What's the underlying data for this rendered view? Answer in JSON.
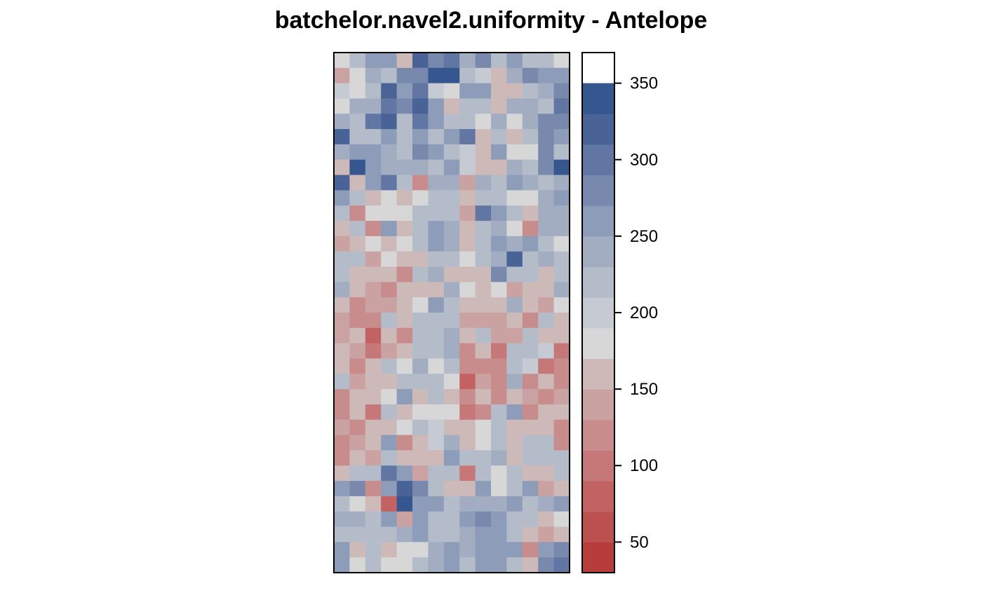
{
  "chart_data": {
    "type": "heatmap",
    "title": "batchelor.navel2.uniformity - Antelope",
    "xlabel": "",
    "ylabel": "",
    "ncols": 15,
    "nrows": 34,
    "color_scale": {
      "min": 30,
      "max": 370,
      "step": 20,
      "ticks": [
        50,
        100,
        150,
        200,
        250,
        300,
        350
      ],
      "colors": [
        "#b73d3d",
        "#bc4f4f",
        "#c26262",
        "#c67777",
        "#c88c8c",
        "#cba2a2",
        "#ceb9b9",
        "#d7d7d7",
        "#c6cbd3",
        "#b4bcca",
        "#a2adc2",
        "#8d9cb8",
        "#7889ad",
        "#6176a2",
        "#4a6397",
        "#35568f"
      ]
    },
    "grid": false,
    "legend": "right",
    "values": [
      [
        170,
        210,
        250,
        250,
        150,
        310,
        270,
        300,
        230,
        270,
        210,
        250,
        210,
        210,
        170
      ],
      [
        130,
        170,
        230,
        210,
        270,
        270,
        330,
        350,
        210,
        190,
        150,
        230,
        270,
        250,
        250
      ],
      [
        190,
        170,
        210,
        310,
        250,
        290,
        190,
        170,
        250,
        250,
        150,
        150,
        210,
        230,
        270
      ],
      [
        170,
        230,
        230,
        290,
        270,
        310,
        250,
        150,
        210,
        210,
        150,
        230,
        230,
        210,
        290
      ],
      [
        230,
        210,
        290,
        310,
        210,
        290,
        250,
        210,
        210,
        170,
        230,
        170,
        230,
        270,
        270
      ],
      [
        310,
        210,
        210,
        250,
        210,
        250,
        210,
        250,
        290,
        150,
        210,
        150,
        210,
        270,
        250
      ],
      [
        230,
        250,
        250,
        230,
        210,
        270,
        250,
        210,
        190,
        150,
        250,
        170,
        170,
        270,
        210
      ],
      [
        150,
        330,
        250,
        230,
        230,
        230,
        210,
        250,
        190,
        150,
        150,
        230,
        210,
        270,
        350
      ],
      [
        310,
        150,
        250,
        290,
        210,
        110,
        230,
        230,
        130,
        230,
        210,
        250,
        230,
        210,
        230
      ],
      [
        250,
        210,
        150,
        170,
        150,
        170,
        210,
        210,
        150,
        210,
        210,
        170,
        170,
        230,
        250
      ],
      [
        210,
        110,
        170,
        170,
        170,
        210,
        210,
        210,
        130,
        290,
        250,
        210,
        150,
        230,
        230
      ],
      [
        150,
        210,
        110,
        250,
        150,
        210,
        250,
        230,
        150,
        210,
        230,
        170,
        110,
        230,
        230
      ],
      [
        130,
        150,
        170,
        150,
        170,
        210,
        250,
        230,
        150,
        210,
        250,
        230,
        250,
        210,
        170
      ],
      [
        210,
        210,
        130,
        170,
        150,
        150,
        210,
        210,
        170,
        210,
        230,
        310,
        210,
        230,
        210
      ],
      [
        210,
        150,
        150,
        150,
        110,
        210,
        230,
        150,
        150,
        150,
        270,
        210,
        210,
        150,
        210
      ],
      [
        230,
        150,
        130,
        110,
        150,
        150,
        150,
        230,
        170,
        150,
        170,
        130,
        150,
        150,
        230
      ],
      [
        150,
        110,
        130,
        130,
        150,
        170,
        250,
        210,
        150,
        150,
        150,
        230,
        150,
        130,
        170
      ],
      [
        130,
        110,
        110,
        210,
        150,
        210,
        210,
        210,
        130,
        130,
        130,
        150,
        110,
        210,
        150
      ],
      [
        130,
        150,
        70,
        150,
        110,
        210,
        210,
        230,
        150,
        210,
        130,
        130,
        210,
        150,
        150
      ],
      [
        150,
        130,
        90,
        130,
        150,
        210,
        210,
        230,
        110,
        150,
        90,
        210,
        210,
        190,
        90
      ],
      [
        150,
        110,
        150,
        210,
        170,
        230,
        170,
        210,
        110,
        110,
        110,
        210,
        190,
        90,
        110
      ],
      [
        210,
        130,
        150,
        150,
        210,
        210,
        210,
        170,
        70,
        130,
        110,
        230,
        110,
        150,
        110
      ],
      [
        110,
        150,
        150,
        170,
        250,
        150,
        210,
        150,
        110,
        150,
        110,
        150,
        130,
        110,
        130
      ],
      [
        110,
        150,
        90,
        210,
        150,
        170,
        170,
        170,
        90,
        110,
        210,
        250,
        110,
        150,
        150
      ],
      [
        130,
        110,
        150,
        150,
        170,
        210,
        190,
        150,
        150,
        170,
        210,
        150,
        150,
        150,
        110
      ],
      [
        110,
        130,
        150,
        250,
        110,
        150,
        190,
        230,
        150,
        170,
        210,
        150,
        210,
        210,
        110
      ],
      [
        110,
        150,
        130,
        210,
        150,
        150,
        150,
        250,
        210,
        210,
        230,
        150,
        210,
        210,
        210
      ],
      [
        150,
        210,
        210,
        290,
        250,
        130,
        210,
        210,
        90,
        210,
        170,
        210,
        150,
        150,
        210
      ],
      [
        250,
        270,
        110,
        250,
        310,
        270,
        210,
        150,
        150,
        250,
        170,
        210,
        250,
        130,
        150
      ],
      [
        210,
        170,
        150,
        70,
        330,
        250,
        250,
        210,
        230,
        230,
        230,
        250,
        210,
        230,
        250
      ],
      [
        230,
        230,
        210,
        250,
        130,
        250,
        210,
        210,
        250,
        270,
        250,
        210,
        210,
        150,
        170
      ],
      [
        210,
        210,
        210,
        210,
        230,
        250,
        210,
        210,
        230,
        250,
        250,
        210,
        150,
        130,
        150
      ],
      [
        250,
        150,
        210,
        150,
        170,
        170,
        230,
        250,
        230,
        250,
        250,
        250,
        110,
        250,
        270
      ],
      [
        250,
        170,
        210,
        170,
        170,
        210,
        230,
        250,
        210,
        250,
        250,
        210,
        150,
        270,
        290
      ]
    ]
  }
}
